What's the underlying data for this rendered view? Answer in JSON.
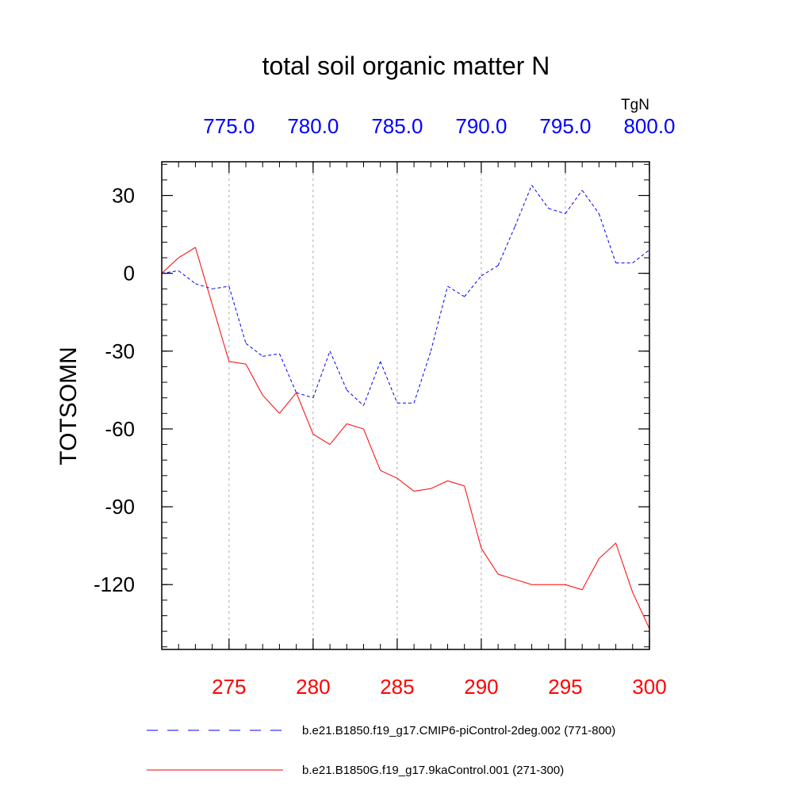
{
  "chart_data": {
    "type": "line",
    "title": "total soil organic matter N",
    "ylabel": "TOTSOMN",
    "units_label": "TgN",
    "ylim": [
      -145,
      43
    ],
    "yticks": [
      30,
      0,
      -30,
      -60,
      -90,
      -120
    ],
    "ytick_labels": [
      "30",
      "0",
      "-30",
      "-60",
      "-90",
      "-120"
    ],
    "x_bottom": {
      "range": [
        271,
        300
      ],
      "ticks": [
        275,
        280,
        285,
        290,
        295,
        300
      ],
      "tick_labels": [
        "275",
        "280",
        "285",
        "290",
        "295",
        "300"
      ],
      "color": "#ff0000"
    },
    "x_top": {
      "range": [
        771,
        800
      ],
      "ticks": [
        775,
        780,
        785,
        790,
        795,
        800
      ],
      "tick_labels": [
        "775.0",
        "780.0",
        "785.0",
        "790.0",
        "795.0",
        "800.0"
      ],
      "color": "#0000ff"
    },
    "series": [
      {
        "name": "b.e21.B1850.f19_g17.CMIP6-piControl-2deg.002 (771-800)",
        "axis": "top",
        "color": "#0000ff",
        "dash": "dashed",
        "x": [
          771,
          772,
          773,
          774,
          775,
          776,
          777,
          778,
          779,
          780,
          781,
          782,
          783,
          784,
          785,
          786,
          787,
          788,
          789,
          790,
          791,
          792,
          793,
          794,
          795,
          796,
          797,
          798,
          799,
          800
        ],
        "values": [
          0,
          1,
          -4,
          -6,
          -5,
          -27,
          -32,
          -31,
          -46,
          -48,
          -30,
          -45,
          -51,
          -34,
          -50,
          -50,
          -30,
          -5,
          -9,
          -1,
          3,
          18,
          34,
          25,
          23,
          32,
          23,
          4,
          4,
          9
        ]
      },
      {
        "name": "b.e21.B1850G.f19_g17.9kaControl.001 (271-300)",
        "axis": "bottom",
        "color": "#ff0000",
        "dash": "solid",
        "x": [
          271,
          272,
          273,
          274,
          275,
          276,
          277,
          278,
          279,
          280,
          281,
          282,
          283,
          284,
          285,
          286,
          287,
          288,
          289,
          290,
          291,
          292,
          293,
          294,
          295,
          296,
          297,
          298,
          299,
          300
        ],
        "values": [
          0,
          6,
          10,
          -12,
          -34,
          -35,
          -47,
          -54,
          -46,
          -62,
          -66,
          -58,
          -60,
          -76,
          -79,
          -84,
          -83,
          -80,
          -82,
          -106,
          -116,
          -118,
          -120,
          -120,
          -120,
          -122,
          -110,
          -104,
          -123,
          -137
        ]
      }
    ]
  }
}
